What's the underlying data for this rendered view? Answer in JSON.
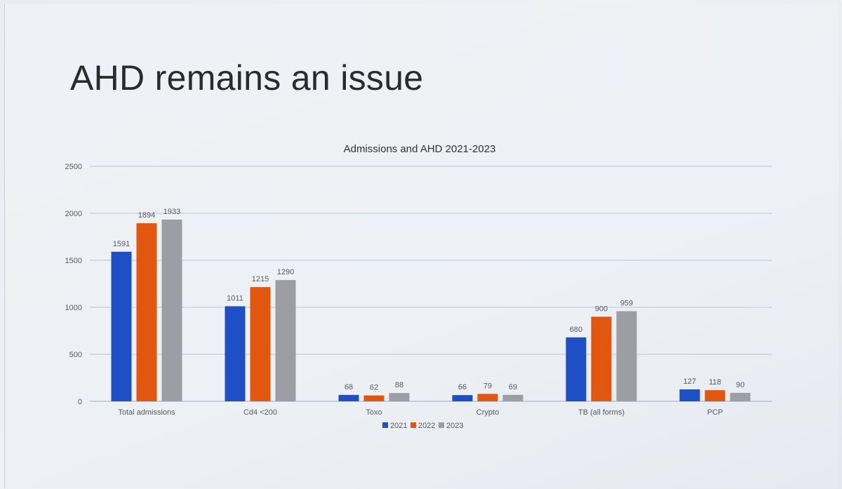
{
  "slide": {
    "title": "AHD remains an issue"
  },
  "chart_data": {
    "type": "bar",
    "title": "Admissions and AHD 2021-2023",
    "categories": [
      "Total admissions",
      "Cd4 <200",
      "Toxo",
      "Crypto",
      "TB (all forms)",
      "PCP"
    ],
    "series": [
      {
        "name": "2021",
        "color": "#1f4fc4",
        "values": [
          1591,
          1011,
          68,
          66,
          680,
          127
        ]
      },
      {
        "name": "2022",
        "color": "#e2570f",
        "values": [
          1894,
          1215,
          62,
          79,
          900,
          118
        ]
      },
      {
        "name": "2023",
        "color": "#9c9ea3",
        "values": [
          1933,
          1290,
          88,
          69,
          959,
          90
        ]
      }
    ],
    "ylim": [
      0,
      2500
    ],
    "yticks": [
      0,
      500,
      1000,
      1500,
      2000,
      2500
    ],
    "grid": true,
    "legend": "bottom"
  }
}
